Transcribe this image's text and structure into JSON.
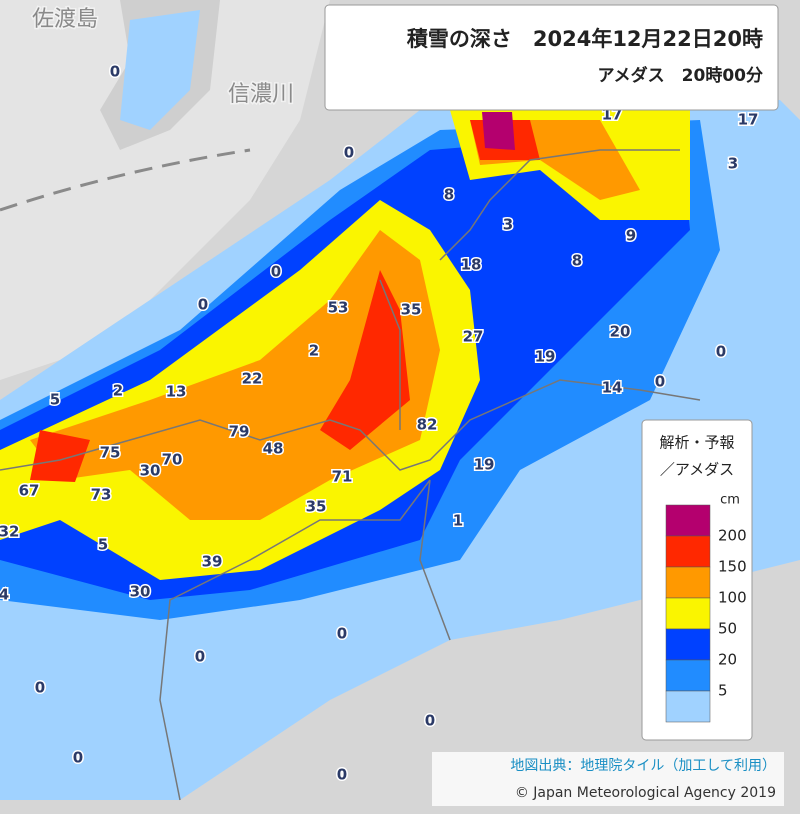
{
  "title": "積雪の深さ　2024年12月22日20時",
  "subtitle": "アメダス　20時00分",
  "places": [
    "佐渡島",
    "信濃川"
  ],
  "legend": {
    "title": [
      "解析・予報",
      "／アメダス"
    ],
    "unit": "cm",
    "levels": [
      200,
      150,
      100,
      50,
      20,
      5
    ],
    "colors": [
      "#b4006e",
      "#ff2800",
      "#ff9900",
      "#faf500",
      "#0041ff",
      "#218cff",
      "#a0d2ff"
    ]
  },
  "stations": [
    0,
    0,
    8,
    3,
    18,
    9,
    8,
    3,
    17,
    17,
    0,
    0,
    53,
    35,
    27,
    2,
    19,
    20,
    0,
    0,
    14,
    22,
    13,
    2,
    5,
    79,
    48,
    82,
    75,
    70,
    30,
    19,
    71,
    67,
    73,
    35,
    1,
    32,
    5,
    39,
    30,
    4,
    0,
    0,
    0,
    0,
    0,
    0
  ],
  "credits": [
    "地図出典：地理院タイル（加工して利用）",
    "© Japan Meteorological Agency 2019"
  ]
}
